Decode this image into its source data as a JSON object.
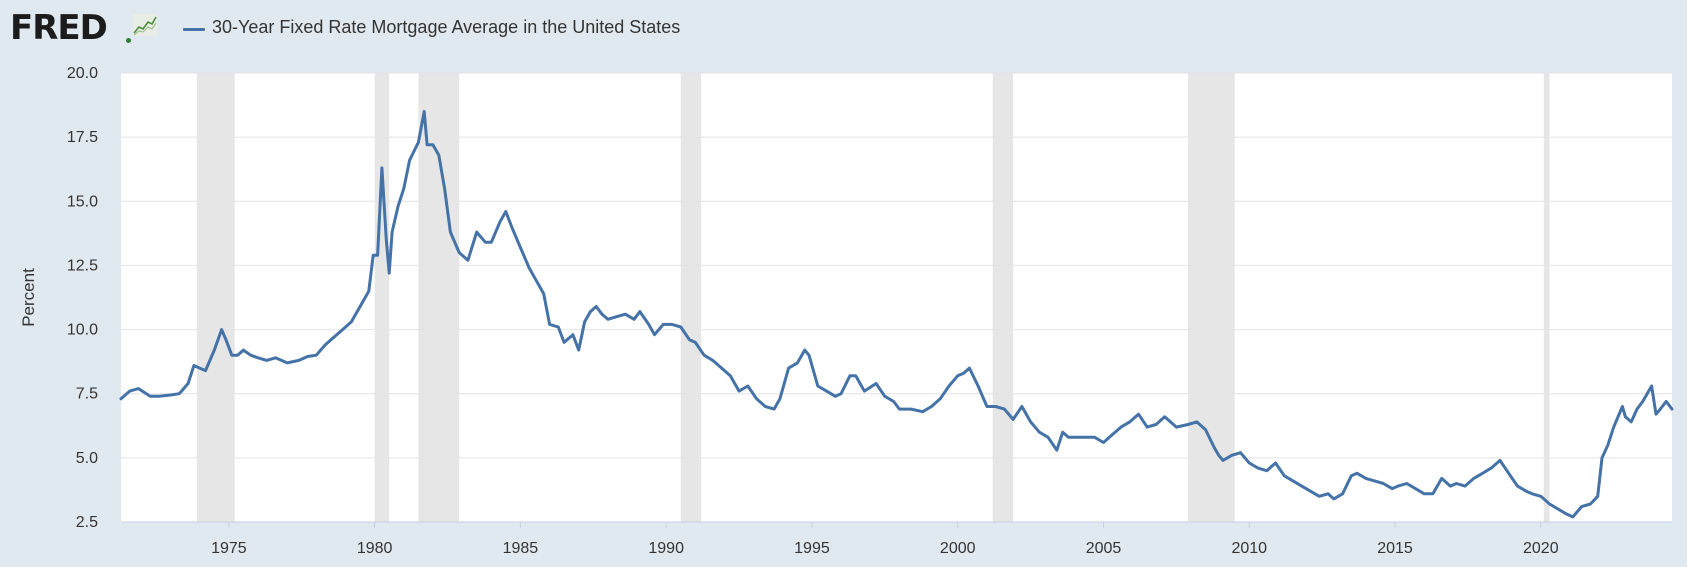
{
  "header": {
    "logo_text": "FRED",
    "series_label": "30-Year Fixed Rate Mortgage Average in the United States",
    "series_color": "#4572a7"
  },
  "chart_data": {
    "type": "line",
    "title": "",
    "xlabel": "",
    "ylabel": "Percent",
    "xlim": [
      1971.3,
      2024.5
    ],
    "ylim": [
      2.5,
      20.0
    ],
    "yticks": [
      "2.5",
      "5.0",
      "7.5",
      "10.0",
      "12.5",
      "15.0",
      "17.5",
      "20.0"
    ],
    "xticks": [
      "1975",
      "1980",
      "1985",
      "1990",
      "1995",
      "2000",
      "2005",
      "2010",
      "2015",
      "2020"
    ],
    "grid": true,
    "recessions": [
      [
        1973.9,
        1975.2
      ],
      [
        1980.0,
        1980.5
      ],
      [
        1981.5,
        1982.9
      ],
      [
        1990.5,
        1991.2
      ],
      [
        2001.2,
        2001.9
      ],
      [
        2007.9,
        2009.5
      ],
      [
        2020.1,
        2020.3
      ]
    ],
    "series": [
      {
        "name": "30-Year Fixed Rate Mortgage Average in the United States",
        "x": [
          1971.3,
          1971.6,
          1971.9,
          1972.3,
          1972.6,
          1973.0,
          1973.3,
          1973.6,
          1973.8,
          1974.0,
          1974.2,
          1974.5,
          1974.75,
          1974.9,
          1975.1,
          1975.3,
          1975.5,
          1975.75,
          1976.0,
          1976.3,
          1976.6,
          1977.0,
          1977.4,
          1977.7,
          1978.0,
          1978.3,
          1978.6,
          1978.9,
          1979.2,
          1979.5,
          1979.8,
          1979.95,
          1980.1,
          1980.25,
          1980.4,
          1980.5,
          1980.6,
          1980.8,
          1981.0,
          1981.2,
          1981.5,
          1981.7,
          1981.8,
          1982.0,
          1982.2,
          1982.4,
          1982.6,
          1982.9,
          1983.2,
          1983.5,
          1983.8,
          1984.0,
          1984.3,
          1984.5,
          1984.7,
          1985.0,
          1985.3,
          1985.5,
          1985.8,
          1986.0,
          1986.3,
          1986.5,
          1986.8,
          1987.0,
          1987.2,
          1987.4,
          1987.6,
          1987.8,
          1988.0,
          1988.3,
          1988.6,
          1988.9,
          1989.1,
          1989.4,
          1989.6,
          1989.9,
          1990.2,
          1990.5,
          1990.8,
          1991.0,
          1991.3,
          1991.6,
          1991.9,
          1992.2,
          1992.5,
          1992.8,
          1993.1,
          1993.4,
          1993.7,
          1993.9,
          1994.2,
          1994.5,
          1994.75,
          1994.9,
          1995.2,
          1995.5,
          1995.8,
          1996.0,
          1996.3,
          1996.5,
          1996.8,
          1997.2,
          1997.5,
          1997.8,
          1998.0,
          1998.4,
          1998.8,
          1999.1,
          1999.4,
          1999.7,
          2000.0,
          2000.2,
          2000.4,
          2000.7,
          2001.0,
          2001.3,
          2001.6,
          2001.9,
          2002.2,
          2002.5,
          2002.8,
          2003.1,
          2003.4,
          2003.6,
          2003.8,
          2004.1,
          2004.4,
          2004.7,
          2005.0,
          2005.3,
          2005.6,
          2005.9,
          2006.2,
          2006.5,
          2006.8,
          2007.1,
          2007.5,
          2007.9,
          2008.2,
          2008.5,
          2008.8,
          2008.95,
          2009.1,
          2009.4,
          2009.7,
          2010.0,
          2010.3,
          2010.6,
          2010.9,
          2011.2,
          2011.5,
          2011.8,
          2012.1,
          2012.4,
          2012.7,
          2012.9,
          2013.2,
          2013.5,
          2013.7,
          2014.0,
          2014.3,
          2014.6,
          2014.9,
          2015.1,
          2015.4,
          2015.7,
          2016.0,
          2016.3,
          2016.6,
          2016.9,
          2017.1,
          2017.4,
          2017.7,
          2018.0,
          2018.3,
          2018.6,
          2018.9,
          2019.2,
          2019.5,
          2019.7,
          2020.0,
          2020.3,
          2020.6,
          2020.9,
          2021.1,
          2021.4,
          2021.7,
          2021.95,
          2022.1,
          2022.3,
          2022.5,
          2022.8,
          2022.9,
          2023.1,
          2023.3,
          2023.5,
          2023.8,
          2023.95,
          2024.1,
          2024.3,
          2024.5
        ],
        "values": [
          7.3,
          7.6,
          7.7,
          7.4,
          7.4,
          7.45,
          7.5,
          7.9,
          8.6,
          8.5,
          8.4,
          9.2,
          10.0,
          9.6,
          9.0,
          9.0,
          9.2,
          9.0,
          8.9,
          8.8,
          8.9,
          8.7,
          8.8,
          8.95,
          9.0,
          9.4,
          9.7,
          10.0,
          10.3,
          10.9,
          11.5,
          12.9,
          12.9,
          16.3,
          13.5,
          12.2,
          13.8,
          14.8,
          15.5,
          16.6,
          17.3,
          18.5,
          17.2,
          17.2,
          16.8,
          15.5,
          13.8,
          13.0,
          12.7,
          13.8,
          13.4,
          13.4,
          14.2,
          14.6,
          14.0,
          13.2,
          12.4,
          12.0,
          11.4,
          10.2,
          10.1,
          9.5,
          9.8,
          9.2,
          10.3,
          10.7,
          10.9,
          10.6,
          10.4,
          10.5,
          10.6,
          10.4,
          10.7,
          10.2,
          9.8,
          10.2,
          10.2,
          10.1,
          9.6,
          9.5,
          9.0,
          8.8,
          8.5,
          8.2,
          7.6,
          7.8,
          7.3,
          7.0,
          6.9,
          7.3,
          8.5,
          8.7,
          9.2,
          9.0,
          7.8,
          7.6,
          7.4,
          7.5,
          8.2,
          8.2,
          7.6,
          7.9,
          7.4,
          7.2,
          6.9,
          6.9,
          6.8,
          7.0,
          7.3,
          7.8,
          8.2,
          8.3,
          8.5,
          7.8,
          7.0,
          7.0,
          6.9,
          6.5,
          7.0,
          6.4,
          6.0,
          5.8,
          5.3,
          6.0,
          5.8,
          5.8,
          5.8,
          5.8,
          5.6,
          5.9,
          6.2,
          6.4,
          6.7,
          6.2,
          6.3,
          6.6,
          6.2,
          6.3,
          6.4,
          6.1,
          5.4,
          5.1,
          4.9,
          5.1,
          5.2,
          4.8,
          4.6,
          4.5,
          4.8,
          4.3,
          4.1,
          3.9,
          3.7,
          3.5,
          3.6,
          3.4,
          3.6,
          4.3,
          4.4,
          4.2,
          4.1,
          4.0,
          3.8,
          3.9,
          4.0,
          3.8,
          3.6,
          3.6,
          4.2,
          3.9,
          4.0,
          3.9,
          4.2,
          4.4,
          4.6,
          4.9,
          4.4,
          3.9,
          3.7,
          3.6,
          3.5,
          3.2,
          3.0,
          2.8,
          2.7,
          3.1,
          3.2,
          3.5,
          5.0,
          5.5,
          6.2,
          7.0,
          6.6,
          6.4,
          6.9,
          7.2,
          7.8,
          6.7,
          6.9,
          7.2,
          6.9
        ]
      }
    ]
  }
}
